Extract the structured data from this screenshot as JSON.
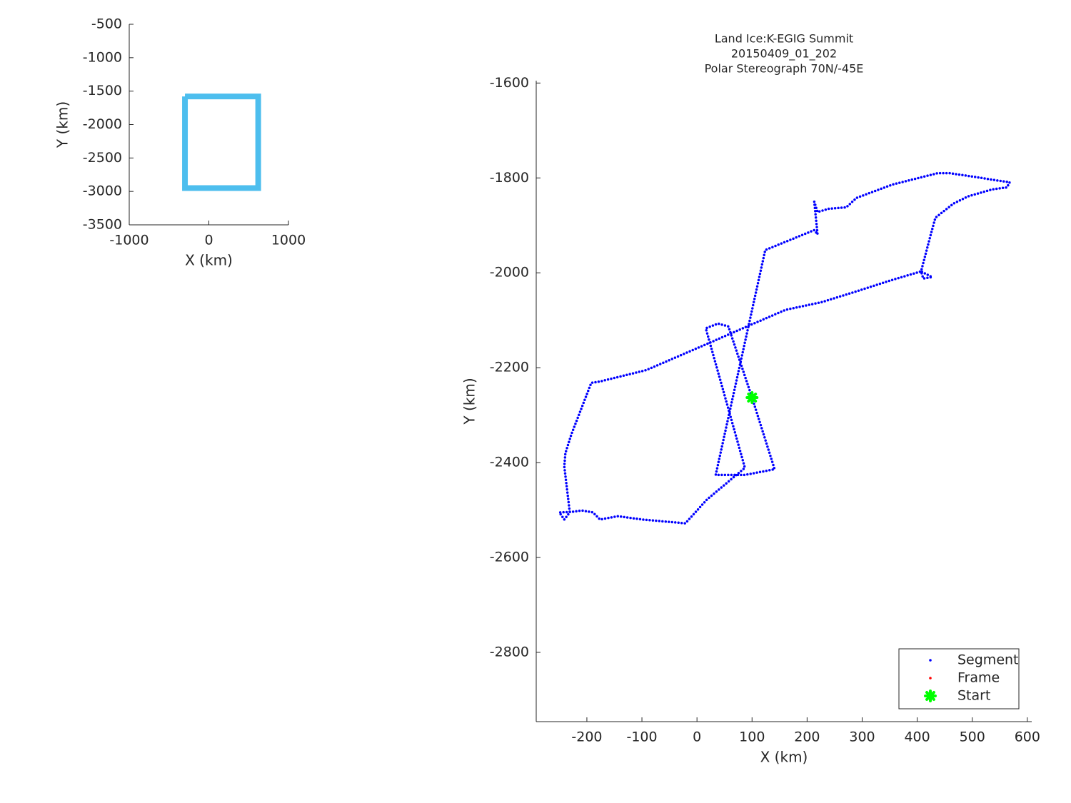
{
  "chart_data": [
    {
      "type": "line",
      "xlabel": "X (km)",
      "ylabel": "Y (km)",
      "xlim": [
        -1000,
        1000
      ],
      "xticks": [
        -1000,
        0,
        1000
      ],
      "ylim": [
        -3500,
        -500
      ],
      "yticks": [
        -3500,
        -3000,
        -2500,
        -2000,
        -1500,
        -1000,
        -500
      ],
      "grid": false,
      "series": [
        {
          "color": "#4dbeee",
          "x": [
            -300,
            620,
            620,
            -300,
            -300
          ],
          "values": [
            -1580,
            -1580,
            -2950,
            -2950,
            -1580
          ]
        }
      ]
    },
    {
      "type": "scatter",
      "title": [
        "Land Ice:K-EGIG Summit",
        "20150409_01_202",
        "Polar Stereograph 70N/-45E"
      ],
      "xlabel": "X (km)",
      "ylabel": "Y (km)",
      "xlim": [
        -292,
        608
      ],
      "xticks": [
        -200,
        -100,
        0,
        100,
        200,
        300,
        400,
        500,
        600
      ],
      "ylim": [
        -2946,
        -1595
      ],
      "yticks": [
        -2800,
        -2600,
        -2400,
        -2200,
        -2000,
        -1800,
        -1600
      ],
      "grid": false,
      "legend": "lower right",
      "series": [
        {
          "name": "Segment",
          "color": "#0000ff",
          "x": [
            100,
            141,
            87,
            34,
            124,
            213,
            219,
            213,
            219,
            239,
            271,
            290,
            355,
            437,
            459,
            511,
            543,
            568,
            563,
            537,
            492,
            466,
            433,
            424,
            407,
            427,
            411,
            407,
            349,
            290,
            226,
            161,
            89,
            18,
            -92,
            -176,
            -192,
            -228,
            -239,
            -241,
            -231,
            -241,
            -250,
            -228,
            -209,
            -189,
            -176,
            -144,
            -99,
            -21,
            18,
            87,
            16,
            38,
            57,
            100
          ],
          "values": [
            -2263,
            -2414,
            -2426,
            -2426,
            -1952,
            -1910,
            -1919,
            -1850,
            -1872,
            -1865,
            -1862,
            -1842,
            -1814,
            -1790,
            -1790,
            -1799,
            -1805,
            -1809,
            -1820,
            -1824,
            -1839,
            -1854,
            -1884,
            -1922,
            -1997,
            -2009,
            -2012,
            -1997,
            -2017,
            -2039,
            -2062,
            -2078,
            -2114,
            -2150,
            -2205,
            -2229,
            -2232,
            -2340,
            -2380,
            -2408,
            -2505,
            -2520,
            -2505,
            -2504,
            -2501,
            -2505,
            -2520,
            -2513,
            -2520,
            -2528,
            -2478,
            -2411,
            -2117,
            -2107,
            -2113,
            -2263
          ]
        },
        {
          "name": "Frame",
          "color": "#ff0000",
          "x": [],
          "values": []
        },
        {
          "name": "Start",
          "color": "#00ff00",
          "x": [
            100
          ],
          "values": [
            -2263
          ]
        }
      ]
    }
  ]
}
